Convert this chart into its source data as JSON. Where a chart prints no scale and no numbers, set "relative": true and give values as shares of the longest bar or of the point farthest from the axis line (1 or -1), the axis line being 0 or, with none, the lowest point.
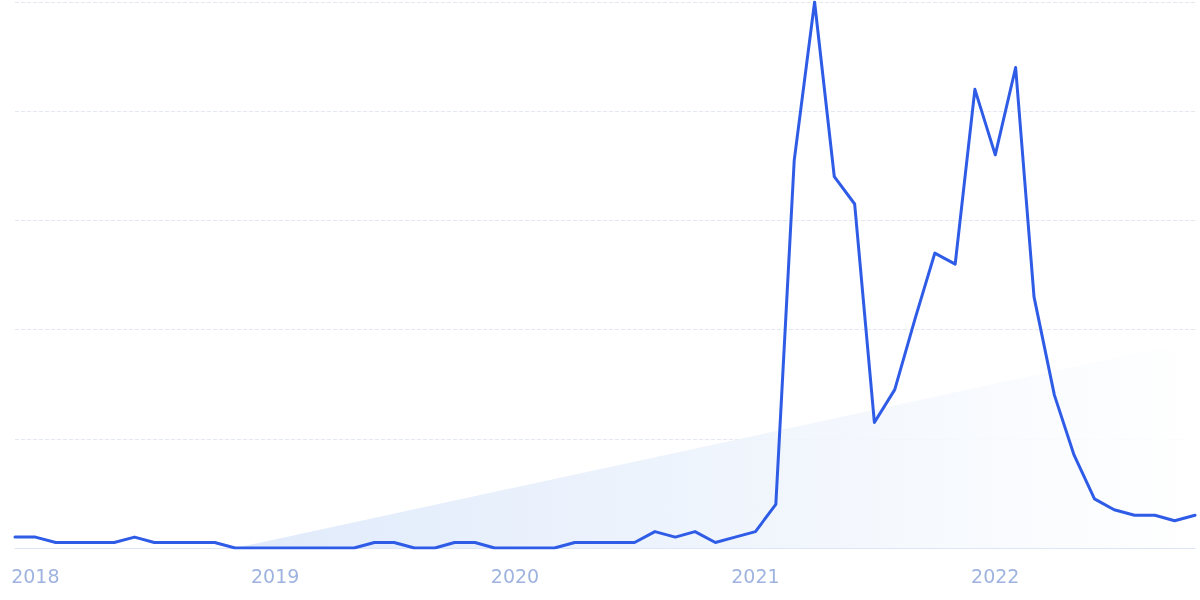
{
  "chart_data": {
    "type": "line",
    "relative": true,
    "grid": "y",
    "tick_labels": "x",
    "marker": "none",
    "line_style": "solid",
    "xlim": [
      "2017-12",
      "2022-11"
    ],
    "xticks": [
      {
        "value": "2018-01",
        "label": "2018"
      },
      {
        "value": "2019-01",
        "label": "2019"
      },
      {
        "value": "2020-01",
        "label": "2020"
      },
      {
        "value": "2021-01",
        "label": "2021"
      },
      {
        "value": "2022-01",
        "label": "2022"
      }
    ],
    "x": [
      "2017-12",
      "2018-01",
      "2018-02",
      "2018-03",
      "2018-04",
      "2018-05",
      "2018-06",
      "2018-07",
      "2018-08",
      "2018-09",
      "2018-10",
      "2018-11",
      "2018-12",
      "2019-01",
      "2019-02",
      "2019-03",
      "2019-04",
      "2019-05",
      "2019-06",
      "2019-07",
      "2019-08",
      "2019-09",
      "2019-10",
      "2019-11",
      "2019-12",
      "2020-01",
      "2020-02",
      "2020-03",
      "2020-04",
      "2020-05",
      "2020-06",
      "2020-07",
      "2020-08",
      "2020-09",
      "2020-10",
      "2020-11",
      "2020-12",
      "2021-01",
      "2021-02",
      "2021-03",
      "2021-04",
      "2021-05",
      "2021-06",
      "2021-07",
      "2021-08",
      "2021-09",
      "2021-10",
      "2021-11",
      "2021-12",
      "2022-01",
      "2022-02",
      "2022-03",
      "2022-04",
      "2022-05",
      "2022-06",
      "2022-07",
      "2022-08",
      "2022-09",
      "2022-10",
      "2022-11"
    ],
    "series": [
      {
        "type": "area",
        "color": "#dce8fa",
        "x": [
          "2018-11",
          "2022-11"
        ],
        "values": [
          0,
          0.38
        ]
      },
      {
        "color": "#2f5ce6",
        "values": [
          0.02,
          0.02,
          0.01,
          0.01,
          0.01,
          0.01,
          0.02,
          0.01,
          0.01,
          0.01,
          0.01,
          0,
          0,
          0,
          0,
          0,
          0,
          0,
          0.01,
          0.01,
          0,
          0,
          0.01,
          0.01,
          0,
          0,
          0,
          0,
          0.01,
          0.01,
          0.01,
          0.01,
          0.03,
          0.02,
          0.03,
          0.01,
          0.02,
          0.03,
          0.08,
          0.71,
          1,
          0.68,
          0.63,
          0.23,
          0.29,
          0.42,
          0.54,
          0.52,
          0.84,
          0.72,
          0.88,
          0.46,
          0.28,
          0.17,
          0.09,
          0.07,
          0.06,
          0.06,
          0.05,
          0.06
        ]
      }
    ]
  }
}
